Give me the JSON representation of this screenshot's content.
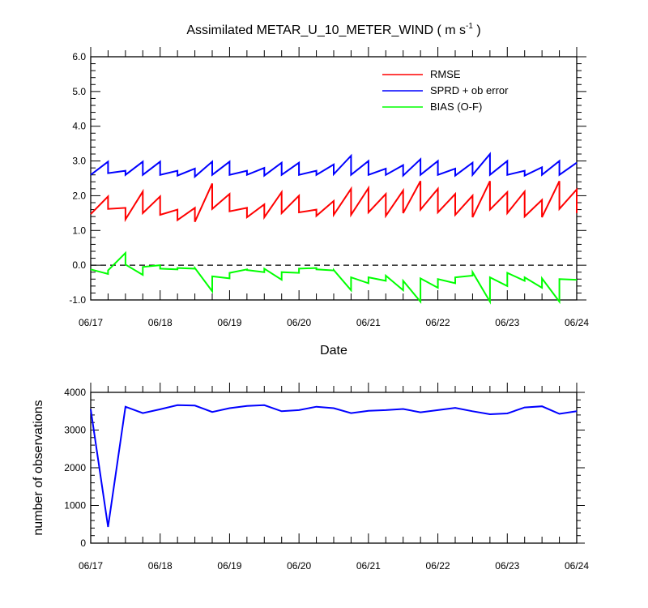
{
  "chart_data": [
    {
      "type": "line",
      "title": "Assimilated METAR_U_10_METER_WIND ( m s",
      "title_sup": "-1",
      "title_end": " )",
      "xlabel": "Date",
      "ylabel": "",
      "ylim": [
        -1.0,
        6.0
      ],
      "yticks": [
        "-1.0",
        "0.0",
        "1.0",
        "2.0",
        "3.0",
        "4.0",
        "5.0",
        "6.0"
      ],
      "xticks": [
        "06/17",
        "06/18",
        "06/19",
        "06/20",
        "06/21",
        "06/22",
        "06/23",
        "06/24"
      ],
      "x_days": [
        17,
        24
      ],
      "zero_line": true,
      "legend_position": "top-right",
      "series": [
        {
          "name": "RMSE",
          "color": "#ff0000",
          "x": [
            17,
            17.25,
            17.25,
            17.5,
            17.5,
            17.75,
            17.75,
            18,
            18,
            18.25,
            18.25,
            18.5,
            18.5,
            18.75,
            18.75,
            19,
            19,
            19.25,
            19.25,
            19.5,
            19.5,
            19.75,
            19.75,
            20,
            20,
            20.25,
            20.25,
            20.5,
            20.5,
            20.75,
            20.75,
            21,
            21,
            21.25,
            21.25,
            21.5,
            21.5,
            21.75,
            21.75,
            22,
            22,
            22.25,
            22.25,
            22.5,
            22.5,
            22.75,
            22.75,
            23,
            23,
            23.25,
            23.25,
            23.5,
            23.5,
            23.75,
            23.75,
            24,
            24
          ],
          "y": [
            1.47,
            1.98,
            1.62,
            1.65,
            1.32,
            2.12,
            1.5,
            1.98,
            1.45,
            1.6,
            1.3,
            1.65,
            1.25,
            2.35,
            1.62,
            2.05,
            1.55,
            1.65,
            1.38,
            1.75,
            1.38,
            2.1,
            1.5,
            2.0,
            1.52,
            1.6,
            1.42,
            1.85,
            1.45,
            2.2,
            1.45,
            2.22,
            1.52,
            2.05,
            1.42,
            2.15,
            1.5,
            2.42,
            1.6,
            2.2,
            1.52,
            2.05,
            1.45,
            2.0,
            1.38,
            2.42,
            1.6,
            2.1,
            1.5,
            2.12,
            1.4,
            1.88,
            1.38,
            2.42,
            1.62,
            2.18,
            1.5
          ]
        },
        {
          "name": "SPRD + ob error",
          "color": "#0000ff",
          "x": [
            17,
            17.25,
            17.25,
            17.5,
            17.5,
            17.75,
            17.75,
            18,
            18,
            18.25,
            18.25,
            18.5,
            18.5,
            18.75,
            18.75,
            19,
            19,
            19.25,
            19.25,
            19.5,
            19.5,
            19.75,
            19.75,
            20,
            20,
            20.25,
            20.25,
            20.5,
            20.5,
            20.75,
            20.75,
            21,
            21,
            21.25,
            21.25,
            21.5,
            21.5,
            21.75,
            21.75,
            22,
            22,
            22.25,
            22.25,
            22.5,
            22.5,
            22.75,
            22.75,
            23,
            23,
            23.25,
            23.25,
            23.5,
            23.5,
            23.75,
            23.75,
            24
          ],
          "y": [
            2.6,
            2.98,
            2.65,
            2.72,
            2.6,
            2.98,
            2.6,
            2.98,
            2.6,
            2.72,
            2.58,
            2.78,
            2.55,
            2.98,
            2.6,
            2.98,
            2.6,
            2.72,
            2.6,
            2.8,
            2.58,
            2.95,
            2.6,
            2.95,
            2.6,
            2.72,
            2.6,
            2.9,
            2.62,
            3.15,
            2.6,
            3.0,
            2.6,
            2.78,
            2.6,
            2.88,
            2.58,
            3.05,
            2.6,
            3.0,
            2.6,
            2.78,
            2.58,
            2.95,
            2.6,
            3.2,
            2.6,
            3.0,
            2.6,
            2.72,
            2.58,
            2.82,
            2.6,
            3.0,
            2.6,
            2.95
          ]
        },
        {
          "name": "BIAS (O-F)",
          "color": "#00ff00",
          "x": [
            17,
            17.25,
            17.25,
            17.5,
            17.5,
            17.75,
            17.75,
            18,
            18,
            18.25,
            18.25,
            18.5,
            18.5,
            18.75,
            18.75,
            19,
            19,
            19.25,
            19.25,
            19.5,
            19.5,
            19.75,
            19.75,
            20,
            20,
            20.25,
            20.25,
            20.5,
            20.5,
            20.75,
            20.75,
            21,
            21,
            21.25,
            21.25,
            21.5,
            21.5,
            21.75,
            21.75,
            22,
            22,
            22.25,
            22.25,
            22.5,
            22.5,
            22.75,
            22.75,
            23,
            23,
            23.25,
            23.25,
            23.5,
            23.5,
            23.75,
            23.75,
            24
          ],
          "y": [
            -0.12,
            -0.25,
            -0.15,
            0.35,
            0.02,
            -0.28,
            -0.05,
            0.0,
            -0.1,
            -0.12,
            -0.08,
            -0.1,
            -0.08,
            -0.75,
            -0.32,
            -0.38,
            -0.22,
            -0.12,
            -0.14,
            -0.2,
            -0.1,
            -0.42,
            -0.2,
            -0.22,
            -0.1,
            -0.08,
            -0.12,
            -0.15,
            -0.14,
            -0.72,
            -0.35,
            -0.52,
            -0.35,
            -0.45,
            -0.3,
            -0.72,
            -0.45,
            -1.05,
            -0.38,
            -0.65,
            -0.4,
            -0.52,
            -0.35,
            -0.3,
            -0.2,
            -1.05,
            -0.35,
            -0.6,
            -0.22,
            -0.45,
            -0.35,
            -0.65,
            -0.38,
            -1.05,
            -0.4,
            -0.42
          ]
        }
      ]
    },
    {
      "type": "line",
      "ylabel": "number of observations",
      "ylim": [
        0,
        4000
      ],
      "yticks": [
        "0",
        "1000",
        "2000",
        "3000",
        "4000"
      ],
      "xticks": [
        "06/17",
        "06/18",
        "06/19",
        "06/20",
        "06/21",
        "06/22",
        "06/23",
        "06/24"
      ],
      "x_days": [
        17,
        24
      ],
      "series": [
        {
          "name": "",
          "color": "#0000ff",
          "x": [
            17,
            17.25,
            17.5,
            17.75,
            18,
            18.25,
            18.5,
            18.75,
            19,
            19.25,
            19.5,
            19.75,
            20,
            20.25,
            20.5,
            20.75,
            21,
            21.25,
            21.5,
            21.75,
            22,
            22.25,
            22.5,
            22.75,
            23,
            23.25,
            23.5,
            23.75,
            24
          ],
          "y": [
            3550,
            430,
            3620,
            3450,
            3550,
            3660,
            3650,
            3480,
            3580,
            3640,
            3660,
            3500,
            3530,
            3620,
            3580,
            3450,
            3510,
            3530,
            3560,
            3470,
            3530,
            3590,
            3500,
            3420,
            3440,
            3600,
            3630,
            3430,
            3500
          ]
        }
      ]
    }
  ]
}
